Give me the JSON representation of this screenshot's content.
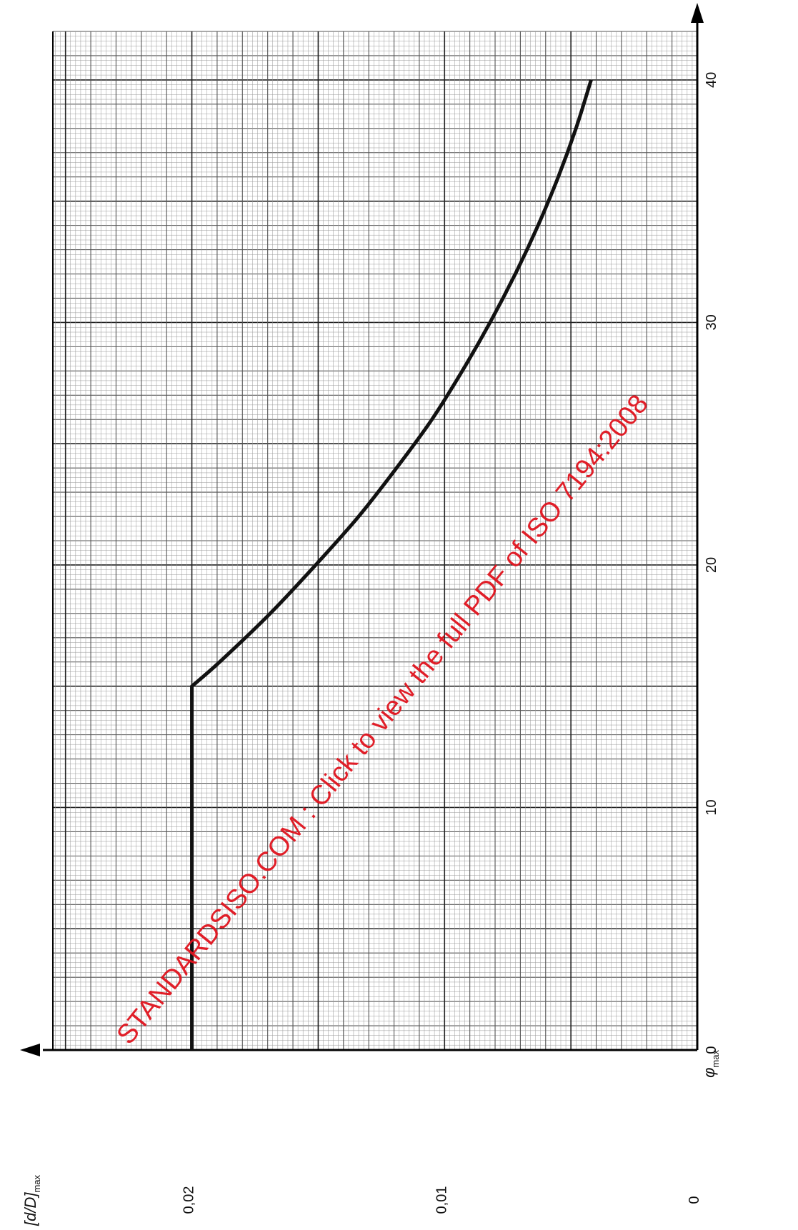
{
  "chart_data": {
    "type": "line",
    "orientation": "rotated-90-counterclockwise",
    "x_label_var": "φ",
    "x_label_sub": "max",
    "y_label_main": "[d/D]",
    "y_label_sub": "max",
    "x_ticks": [
      {
        "value": 0,
        "label": "0"
      },
      {
        "value": 10,
        "label": "10"
      },
      {
        "value": 20,
        "label": "20"
      },
      {
        "value": 30,
        "label": "30"
      },
      {
        "value": 40,
        "label": "40"
      }
    ],
    "y_ticks": [
      {
        "value": 0,
        "label": "0"
      },
      {
        "value": 0.01,
        "label": "0,01"
      },
      {
        "value": 0.02,
        "label": "0,02"
      }
    ],
    "xlim": [
      0,
      42
    ],
    "ylim": [
      0,
      0.0255
    ],
    "grid": true,
    "series": [
      {
        "x": [
          0,
          15,
          16,
          18,
          20,
          22,
          24,
          26,
          28,
          30,
          32,
          34,
          36,
          38,
          40
        ],
        "y": [
          0.02,
          0.02,
          0.0189,
          0.0169,
          0.0151,
          0.0134,
          0.0119,
          0.0105,
          0.0093,
          0.0082,
          0.0072,
          0.0063,
          0.0055,
          0.0048,
          0.0042
        ]
      }
    ]
  },
  "watermark": "STANDARDSISO.COM : Click to view the full PDF of ISO 7194:2008",
  "colors": {
    "grid_minor": "#9a9a9a",
    "grid_major": "#222222",
    "axis": "#000000",
    "curve": "#111111",
    "watermark": "#e0141e"
  }
}
